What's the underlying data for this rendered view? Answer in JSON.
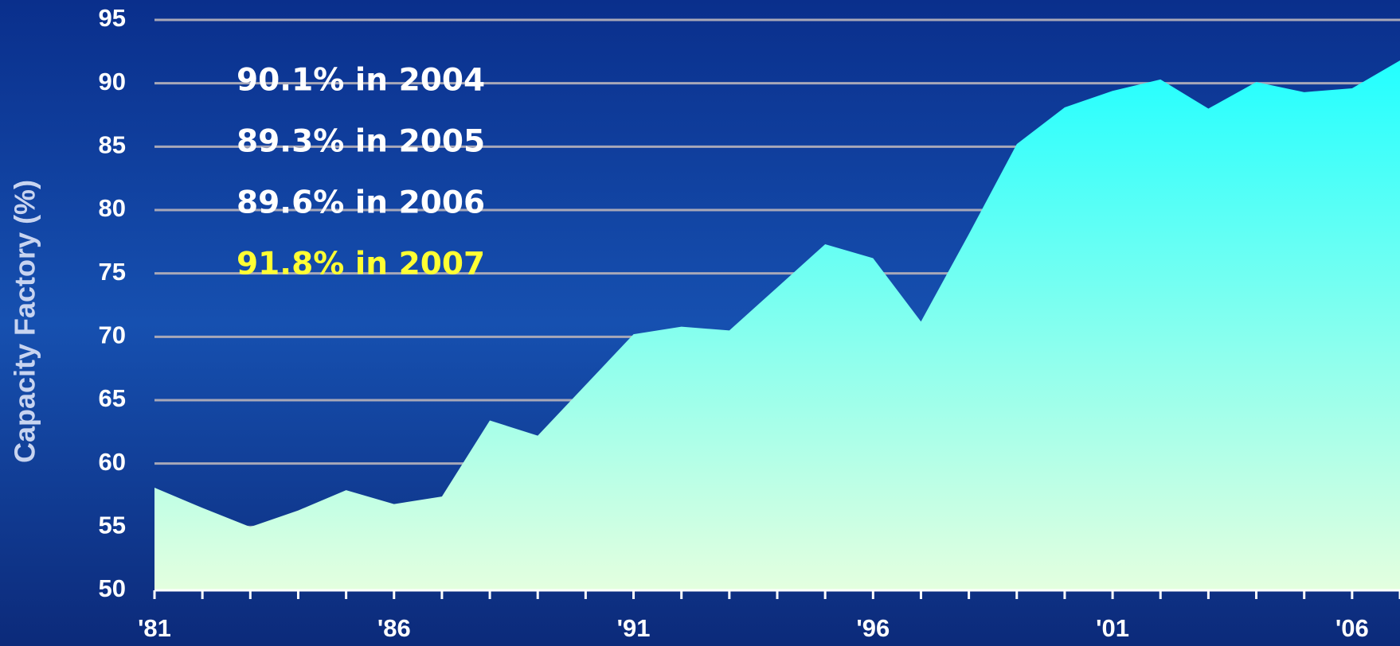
{
  "chart_data": {
    "type": "area",
    "y_label": "Capacity Factory (%)",
    "categories": [
      "'81",
      null,
      null,
      null,
      null,
      "'86",
      null,
      null,
      null,
      null,
      "'91",
      null,
      null,
      null,
      null,
      "'96",
      null,
      null,
      null,
      null,
      "'01",
      null,
      null,
      null,
      null,
      "'06",
      null
    ],
    "values": [
      58.1,
      56.5,
      55.0,
      56.3,
      57.9,
      56.8,
      57.4,
      63.4,
      62.2,
      66.2,
      70.2,
      70.8,
      70.5,
      73.9,
      77.3,
      76.2,
      71.2,
      78.1,
      85.2,
      88.1,
      89.4,
      90.3,
      88.0,
      90.1,
      89.3,
      89.6,
      91.8
    ],
    "color": "#22ffff",
    "ylim": [
      50,
      95
    ],
    "yticks": [
      50,
      55,
      60,
      65,
      70,
      75,
      80,
      85,
      90,
      95
    ],
    "grid": true,
    "annotations": [
      "90.1% in 2004",
      "89.3% in 2005",
      "89.6% in 2006",
      "91.8% in 2007"
    ],
    "annotation_colors": [
      "#ffffff",
      "#ffffff",
      "#ffffff",
      "#ffff33"
    ]
  }
}
